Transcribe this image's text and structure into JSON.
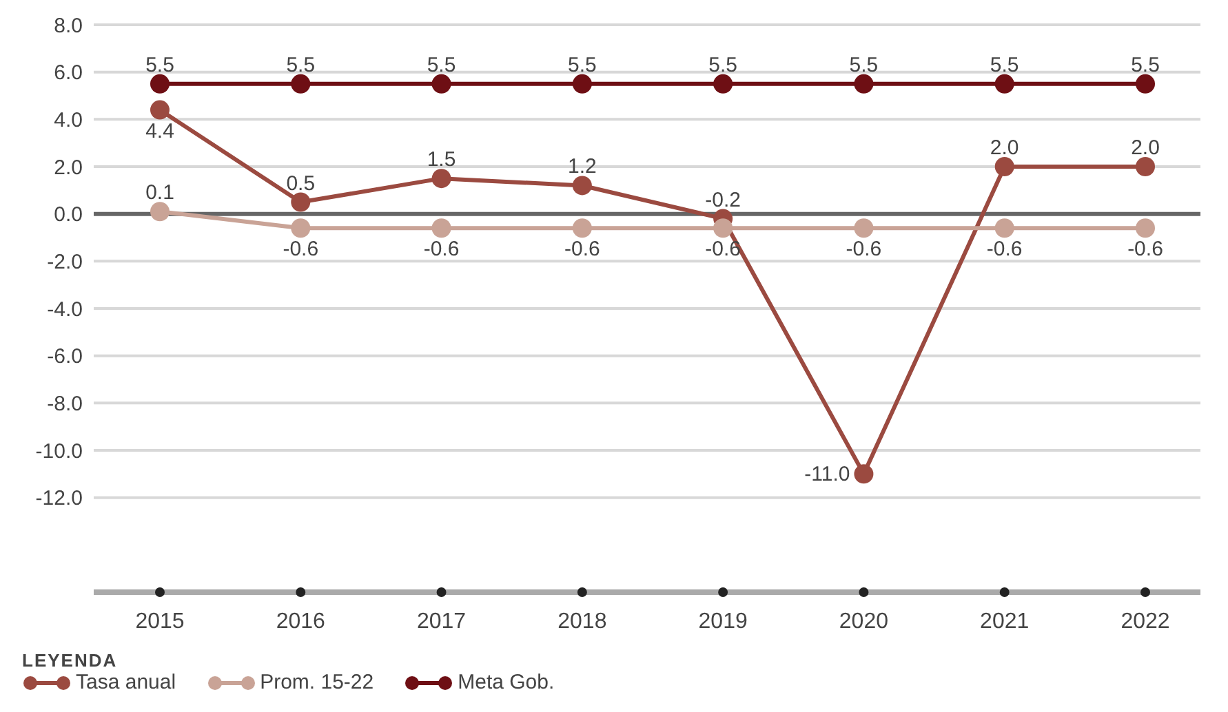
{
  "chart_data": {
    "type": "line",
    "categories": [
      "2015",
      "2016",
      "2017",
      "2018",
      "2019",
      "2020",
      "2021",
      "2022"
    ],
    "series": [
      {
        "name": "Tasa anual",
        "color": "#9b4a40",
        "values": [
          4.4,
          0.5,
          1.5,
          1.2,
          -0.2,
          -11.0,
          2.0,
          2.0
        ],
        "value_labels": [
          "4.4",
          "0.5",
          "1.5",
          "1.2",
          "-0.2",
          "-11.0",
          "2.0",
          "2.0"
        ]
      },
      {
        "name": "Prom. 15-22",
        "color": "#c9a396",
        "values": [
          0.1,
          -0.6,
          -0.6,
          -0.6,
          -0.6,
          -0.6,
          -0.6,
          -0.6
        ],
        "value_labels": [
          "0.1",
          "-0.6",
          "-0.6",
          "-0.6",
          "-0.6",
          "-0.6",
          "-0.6",
          "-0.6"
        ]
      },
      {
        "name": "Meta Gob.",
        "color": "#6e0f14",
        "values": [
          5.5,
          5.5,
          5.5,
          5.5,
          5.5,
          5.5,
          5.5,
          5.5
        ],
        "value_labels": [
          "5.5",
          "5.5",
          "5.5",
          "5.5",
          "5.5",
          "5.5",
          "5.5",
          "5.5"
        ]
      }
    ],
    "ylim": [
      -16,
      8
    ],
    "yticks": [
      {
        "value": 8,
        "label": "8.0"
      },
      {
        "value": 6,
        "label": "6.0"
      },
      {
        "value": 4,
        "label": "4.0"
      },
      {
        "value": 2,
        "label": "2.0"
      },
      {
        "value": 0,
        "label": "0.0"
      },
      {
        "value": -2,
        "label": "-2.0"
      },
      {
        "value": -4,
        "label": "-4.0"
      },
      {
        "value": -6,
        "label": "-6.0"
      },
      {
        "value": -8,
        "label": "-8.0"
      },
      {
        "value": -10,
        "label": "-10.0"
      },
      {
        "value": -12,
        "label": "-12.0"
      }
    ],
    "ref_lines": [
      {
        "axis": "y",
        "value": 0,
        "color": "#666666"
      }
    ],
    "grid": "y",
    "legend": "bottom left",
    "legend_title": "LEYENDA",
    "marker": "circle",
    "line_style": "solid"
  }
}
